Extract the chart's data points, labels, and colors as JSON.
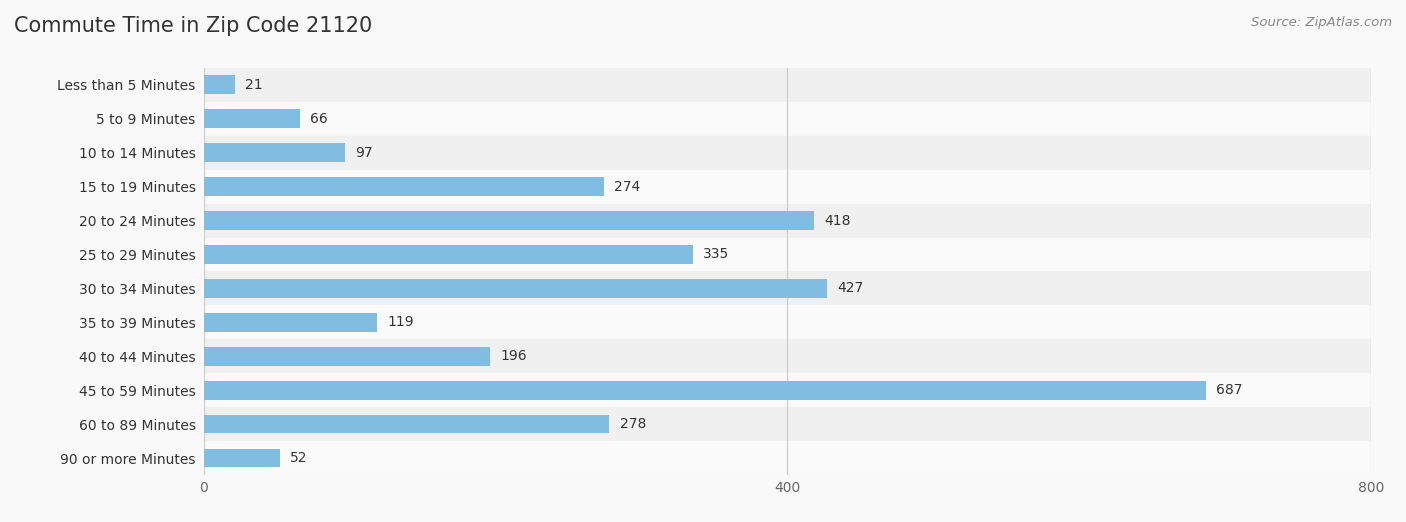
{
  "title": "Commute Time in Zip Code 21120",
  "source": "Source: ZipAtlas.com",
  "categories": [
    "Less than 5 Minutes",
    "5 to 9 Minutes",
    "10 to 14 Minutes",
    "15 to 19 Minutes",
    "20 to 24 Minutes",
    "25 to 29 Minutes",
    "30 to 34 Minutes",
    "35 to 39 Minutes",
    "40 to 44 Minutes",
    "45 to 59 Minutes",
    "60 to 89 Minutes",
    "90 or more Minutes"
  ],
  "values": [
    21,
    66,
    97,
    274,
    418,
    335,
    427,
    119,
    196,
    687,
    278,
    52
  ],
  "bar_color": "#80bde0",
  "row_bg_even": "#f0f0f0",
  "row_bg_odd": "#fafafa",
  "fig_bg": "#f9f9f9",
  "xlim": [
    0,
    800
  ],
  "xticks": [
    0,
    400,
    800
  ],
  "title_fontsize": 15,
  "label_fontsize": 10,
  "value_fontsize": 10,
  "source_fontsize": 9.5,
  "title_color": "#333333",
  "label_color": "#333333",
  "value_color": "#333333",
  "source_color": "#888888",
  "grid_color": "#cccccc",
  "bar_height": 0.55
}
